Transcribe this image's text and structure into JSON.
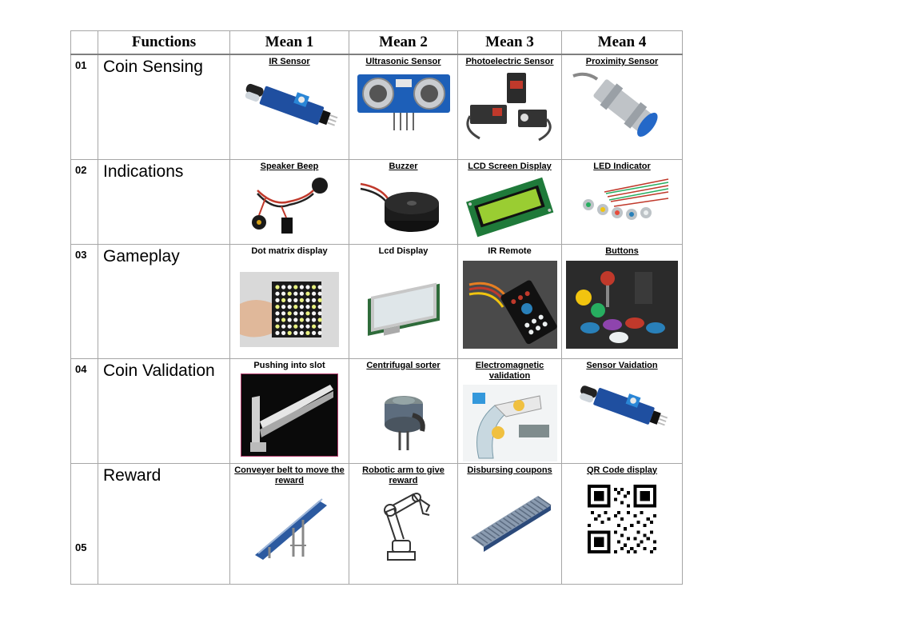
{
  "table": {
    "headers": [
      "",
      "Functions",
      "Mean 1",
      "Mean 2",
      "Mean 3",
      "Mean 4"
    ],
    "rows": [
      {
        "num": "01",
        "function": "Coin Sensing",
        "means": [
          {
            "label": "IR Sensor",
            "icon": "ir-sensor-module-image"
          },
          {
            "label": "Ultrasonic Sensor",
            "icon": "ultrasonic-sensor-image"
          },
          {
            "label": "Photoelectric Sensor",
            "icon": "photoelectric-sensor-image"
          },
          {
            "label": "Proximity Sensor",
            "icon": "proximity-sensor-image"
          }
        ]
      },
      {
        "num": "02",
        "function": "Indications",
        "means": [
          {
            "label": "Speaker Beep",
            "icon": "speaker-beep-image"
          },
          {
            "label": "Buzzer",
            "icon": "buzzer-image"
          },
          {
            "label": "LCD Screen Display",
            "icon": "lcd-screen-image"
          },
          {
            "label": "LED Indicator",
            "icon": "led-indicator-image"
          }
        ]
      },
      {
        "num": "03",
        "function": "Gameplay",
        "means": [
          {
            "label": "Dot matrix display",
            "icon": "dot-matrix-image"
          },
          {
            "label": "Lcd Display",
            "icon": "lcd-display-image"
          },
          {
            "label": "IR Remote",
            "icon": "ir-remote-image"
          },
          {
            "label": "Buttons",
            "icon": "arcade-buttons-image"
          }
        ]
      },
      {
        "num": "04",
        "function": "Coin Validation",
        "means": [
          {
            "label": "Pushing into slot",
            "icon": "slot-pusher-image"
          },
          {
            "label": "Centrifugal sorter",
            "icon": "centrifugal-sorter-image"
          },
          {
            "label": "Electromagnetic validation",
            "icon": "electromagnetic-validator-image"
          },
          {
            "label": "Sensor Vaidation",
            "icon": "ir-sensor-module-image"
          }
        ]
      },
      {
        "num": "05",
        "function": "Reward",
        "means": [
          {
            "label": "Conveyer belt to move the reward",
            "icon": "conveyor-belt-image"
          },
          {
            "label": "Robotic arm to give reward",
            "icon": "robotic-arm-image"
          },
          {
            "label": "Disbursing coupons",
            "icon": "roller-conveyor-image"
          },
          {
            "label": "QR Code display",
            "icon": "qr-code-image"
          }
        ]
      }
    ]
  }
}
